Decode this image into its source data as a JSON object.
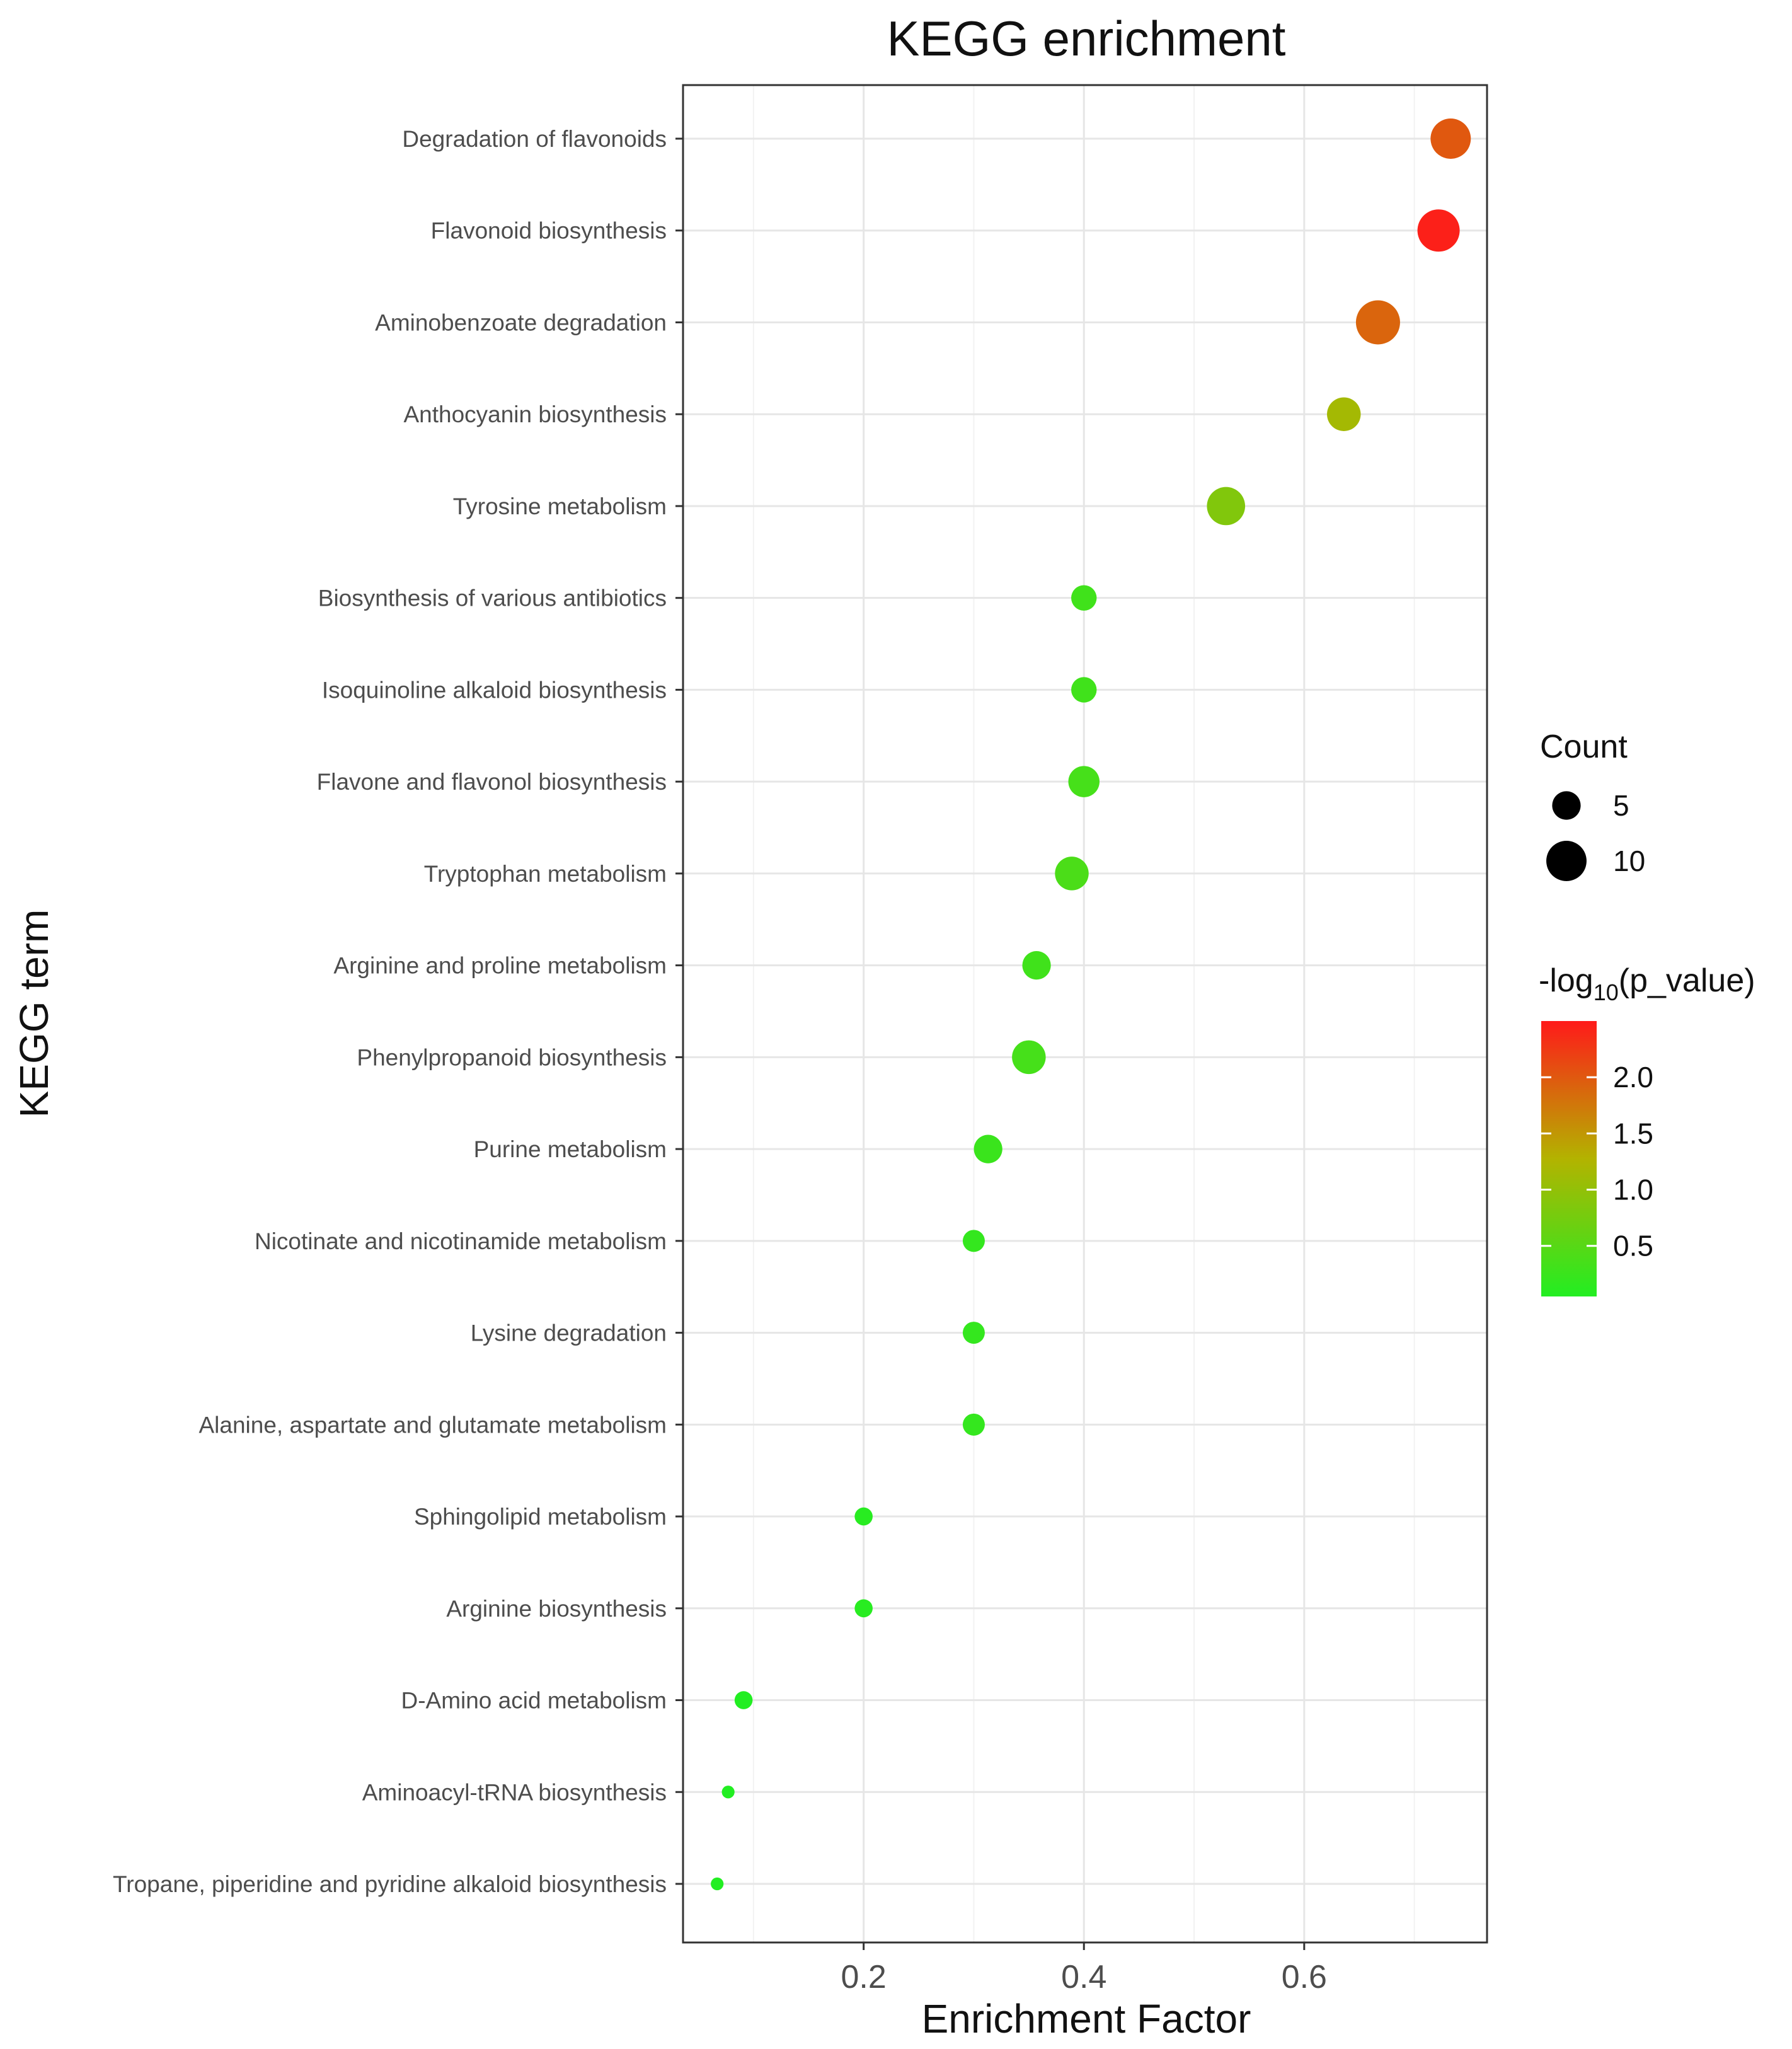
{
  "chart_data": {
    "type": "scatter",
    "title": "KEGG enrichment",
    "xlabel": "Enrichment Factor",
    "ylabel": "KEGG term",
    "xlim": [
      0.036,
      0.766
    ],
    "xticks": [
      "0.2",
      "0.4",
      "0.6"
    ],
    "grid": true,
    "legend_position": "right",
    "size_legend": {
      "title": "Count",
      "entries": [
        {
          "label": "5",
          "value": 5
        },
        {
          "label": "10",
          "value": 10
        }
      ]
    },
    "color_legend": {
      "title_prefix": "-log",
      "title_sub": "10",
      "title_suffix": "(p_value)",
      "ticks": [
        {
          "label": "2.0",
          "value": 2.0
        },
        {
          "label": "1.5",
          "value": 1.5
        },
        {
          "label": "1.0",
          "value": 1.0
        },
        {
          "label": "0.5",
          "value": 0.5
        }
      ],
      "range": [
        0.05,
        2.5
      ],
      "low_color": "#22ee22",
      "mid_color": "#b3b300",
      "high_color": "#ff1a1a"
    },
    "points": [
      {
        "term": "Degradation of flavonoids",
        "enrichment_factor": 0.733,
        "count": 10,
        "neg_log10_p": 2.0
      },
      {
        "term": "Flavonoid biosynthesis",
        "enrichment_factor": 0.722,
        "count": 11,
        "neg_log10_p": 2.45
      },
      {
        "term": "Aminobenzoate degradation",
        "enrichment_factor": 0.667,
        "count": 12,
        "neg_log10_p": 1.9
      },
      {
        "term": "Anthocyanin biosynthesis",
        "enrichment_factor": 0.636,
        "count": 7,
        "neg_log10_p": 1.15
      },
      {
        "term": "Tyrosine metabolism",
        "enrichment_factor": 0.529,
        "count": 9,
        "neg_log10_p": 0.85
      },
      {
        "term": "Biosynthesis of various antibiotics",
        "enrichment_factor": 0.4,
        "count": 4,
        "neg_log10_p": 0.3
      },
      {
        "term": "Isoquinoline alkaloid biosynthesis",
        "enrichment_factor": 0.4,
        "count": 4,
        "neg_log10_p": 0.3
      },
      {
        "term": "Flavone and flavonol biosynthesis",
        "enrichment_factor": 0.4,
        "count": 6,
        "neg_log10_p": 0.35
      },
      {
        "term": "Tryptophan metabolism",
        "enrichment_factor": 0.389,
        "count": 7,
        "neg_log10_p": 0.4
      },
      {
        "term": "Arginine and proline metabolism",
        "enrichment_factor": 0.357,
        "count": 5,
        "neg_log10_p": 0.3
      },
      {
        "term": "Phenylpropanoid biosynthesis",
        "enrichment_factor": 0.35,
        "count": 7,
        "neg_log10_p": 0.35
      },
      {
        "term": "Purine metabolism",
        "enrichment_factor": 0.313,
        "count": 5,
        "neg_log10_p": 0.25
      },
      {
        "term": "Nicotinate and nicotinamide metabolism",
        "enrichment_factor": 0.3,
        "count": 3,
        "neg_log10_p": 0.2
      },
      {
        "term": "Lysine degradation",
        "enrichment_factor": 0.3,
        "count": 3,
        "neg_log10_p": 0.2
      },
      {
        "term": "Alanine, aspartate and glutamate metabolism",
        "enrichment_factor": 0.3,
        "count": 3,
        "neg_log10_p": 0.2
      },
      {
        "term": "Sphingolipid metabolism",
        "enrichment_factor": 0.2,
        "count": 2,
        "neg_log10_p": 0.1
      },
      {
        "term": "Arginine biosynthesis",
        "enrichment_factor": 0.2,
        "count": 2,
        "neg_log10_p": 0.1
      },
      {
        "term": "D-Amino acid metabolism",
        "enrichment_factor": 0.091,
        "count": 2,
        "neg_log10_p": 0.05
      },
      {
        "term": "Aminoacyl-tRNA biosynthesis",
        "enrichment_factor": 0.077,
        "count": 1,
        "neg_log10_p": 0.05
      },
      {
        "term": "Tropane, piperidine and pyridine alkaloid biosynthesis",
        "enrichment_factor": 0.067,
        "count": 1,
        "neg_log10_p": 0.05
      }
    ]
  }
}
